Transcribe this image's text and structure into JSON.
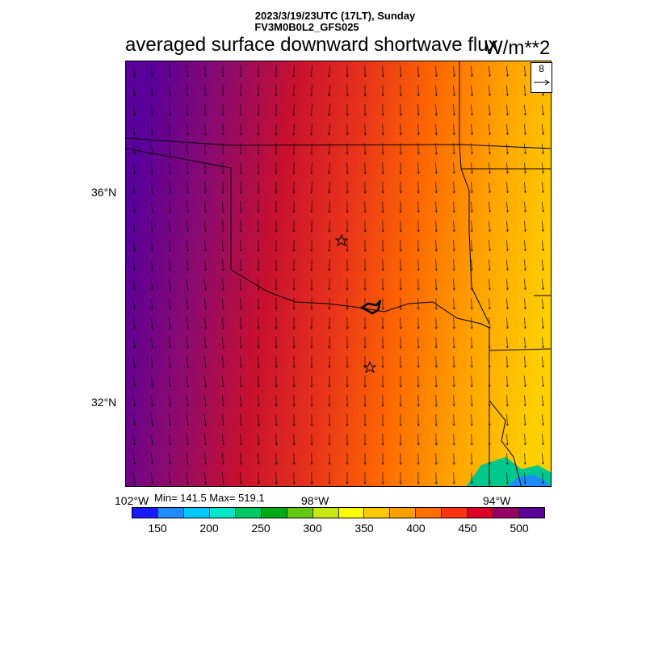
{
  "header": {
    "datetime_line": "2023/3/19/23UTC (17LT), Sunday",
    "model_line": "FV3M0B0L2_GFS025",
    "title": "averaged surface downward shortwave flux",
    "units": "W/m**2"
  },
  "map": {
    "lat_labels": [
      "36°N",
      "32°N"
    ],
    "lon_labels": [
      "102°W",
      "98°W",
      "94°W"
    ],
    "field_gradient_stops": [
      {
        "color": "#5a009a",
        "label": "west"
      },
      {
        "color": "#8c0a6e"
      },
      {
        "color": "#c8102e"
      },
      {
        "color": "#e8341a"
      },
      {
        "color": "#ff6a00"
      },
      {
        "color": "#ffa500"
      },
      {
        "color": "#ffd000",
        "label": "east"
      }
    ],
    "markers": [
      "star-icon",
      "star-icon"
    ],
    "vector_key": {
      "value": "8"
    }
  },
  "stats": {
    "text": "Min= 141.5 Max= 519.1",
    "min": 141.5,
    "max": 519.1
  },
  "colorbar": {
    "colors": [
      "#1a1aff",
      "#1e8cff",
      "#00c8ff",
      "#00e6c8",
      "#00c864",
      "#00aa14",
      "#64c814",
      "#c8e614",
      "#ffff00",
      "#ffc800",
      "#ffa000",
      "#ff6e00",
      "#ff3214",
      "#dc0028",
      "#960064",
      "#5a009a"
    ],
    "tick_labels": [
      "150",
      "200",
      "250",
      "300",
      "350",
      "400",
      "450",
      "500"
    ]
  }
}
